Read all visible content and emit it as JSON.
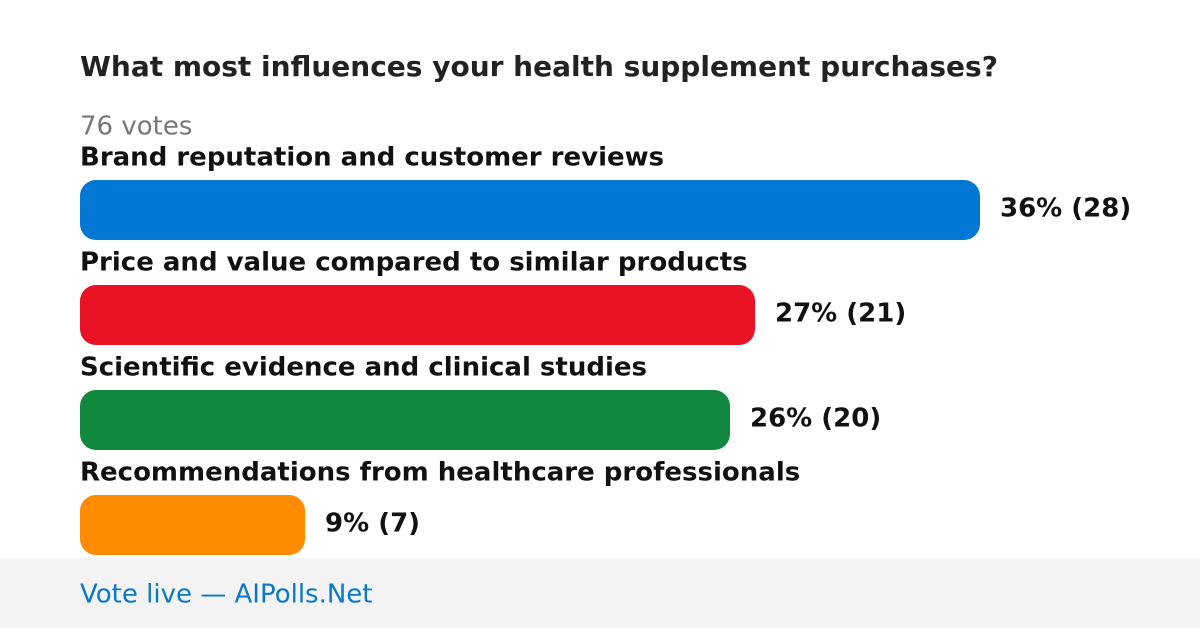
{
  "chart_data": {
    "type": "bar",
    "orientation": "horizontal",
    "title": "What most influences your health supplement purchases?",
    "subtitle": "76 votes",
    "categories": [
      "Brand reputation and customer reviews",
      "Price and value compared to similar products",
      "Scientific evidence and clinical studies",
      "Recommendations from healthcare professionals"
    ],
    "values": [
      36,
      27,
      26,
      9
    ],
    "value_labels": [
      "36% (28)",
      "27% (21)",
      "26% (20)",
      "9% (7)"
    ],
    "colors": [
      "#0277d4",
      "#e81224",
      "#10893e",
      "#ff8c00"
    ]
  },
  "footer": "Vote live — AIPolls.Net"
}
